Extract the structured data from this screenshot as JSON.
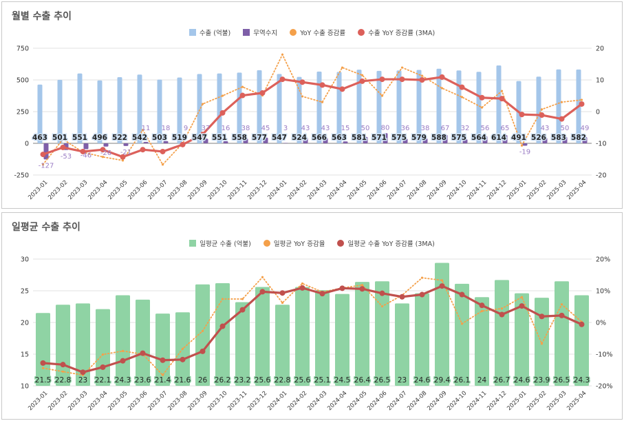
{
  "chart_data": [
    {
      "type": "bar",
      "title": "월별 수출 추이",
      "categories": [
        "2023-01",
        "2023-02",
        "2023-03",
        "2023-04",
        "2023-05",
        "2023-06",
        "2023-07",
        "2023-08",
        "2023-09",
        "2023-10",
        "2023-11",
        "2023-12",
        "2024-01",
        "2024-02",
        "2024-03",
        "2024-04",
        "2024-05",
        "2024-06",
        "2024-07",
        "2024-08",
        "2024-09",
        "2024-10",
        "2024-11",
        "2024-12",
        "2025-01",
        "2025-02",
        "2025-03",
        "2025-04"
      ],
      "left_axis": {
        "range": [
          -250,
          750
        ],
        "ticks": [
          "-250",
          "0",
          "250",
          "500",
          "750"
        ]
      },
      "right_axis": {
        "range": [
          -20,
          20
        ],
        "ticks": [
          "-20",
          "-10",
          "0",
          "10",
          "20"
        ]
      },
      "grid": true,
      "legend_position": "top",
      "series": [
        {
          "name": "수출 (억불)",
          "type": "bar",
          "axis": "left",
          "color": "#a4c6ea",
          "values": [
            463,
            501,
            551,
            496,
            522,
            542,
            503,
            519,
            547,
            551,
            558,
            577,
            547,
            524,
            566,
            563,
            581,
            571,
            575,
            579,
            588,
            575,
            564,
            614,
            491,
            526,
            583,
            582
          ]
        },
        {
          "name": "무역수지",
          "type": "bar",
          "axis": "left",
          "color": "#7e5fa8",
          "values": [
            -127,
            -53,
            -46,
            -26,
            -21,
            11,
            18,
            9,
            37,
            16,
            38,
            45,
            3,
            43,
            43,
            15,
            50,
            80,
            36,
            38,
            67,
            32,
            56,
            65,
            -19,
            43,
            50,
            49
          ]
        },
        {
          "name": "YoY 수출 증감률",
          "type": "line-dotted",
          "axis": "right",
          "color": "#f4a04a",
          "values": [
            -16.7,
            -8.7,
            -12.8,
            -14.3,
            -15.4,
            -5.8,
            -16.7,
            -10,
            2.4,
            5,
            7.8,
            5.1,
            18,
            4.8,
            3,
            13.9,
            11.5,
            5,
            13.9,
            11.3,
            7.4,
            4.6,
            1.3,
            6.5,
            -10.7,
            0.7,
            3,
            3.7
          ]
        },
        {
          "name": "수출 YoY 증감률 (3MA)",
          "type": "line",
          "axis": "right",
          "color": "#dc605a",
          "values": [
            -13.5,
            -11.3,
            -12.6,
            -12,
            -14.3,
            -12,
            -12.6,
            -10.4,
            -7.2,
            -0.4,
            5.1,
            5.9,
            10.2,
            9.3,
            8.4,
            7.1,
            9.6,
            10.2,
            10.2,
            10,
            10.9,
            7.7,
            4.4,
            4.1,
            -0.9,
            -1.1,
            -2.3,
            2.4
          ]
        }
      ]
    },
    {
      "type": "bar",
      "title": "일평균 수출 추이",
      "categories": [
        "2023-01",
        "2023-02",
        "2023-03",
        "2023-04",
        "2023-05",
        "2023-06",
        "2023-07",
        "2023-08",
        "2023-09",
        "2023-10",
        "2023-11",
        "2023-12",
        "2024-01",
        "2024-02",
        "2024-03",
        "2024-04",
        "2024-05",
        "2024-06",
        "2024-07",
        "2024-08",
        "2024-09",
        "2024-10",
        "2024-11",
        "2024-12",
        "2025-01",
        "2025-02",
        "2025-03",
        "2025-04"
      ],
      "left_axis": {
        "range": [
          10,
          30
        ],
        "ticks": [
          "10",
          "15",
          "20",
          "25",
          "30"
        ]
      },
      "right_axis": {
        "range": [
          -20,
          20
        ],
        "ticks": [
          "-20%",
          "-10%",
          "0%",
          "10%",
          "20%"
        ]
      },
      "grid": true,
      "legend_position": "top",
      "series": [
        {
          "name": "일평균 수출 (억불)",
          "type": "bar",
          "axis": "left",
          "color": "#8fd3a4",
          "values": [
            21.5,
            22.8,
            23,
            22.1,
            24.3,
            23.6,
            21.4,
            21.6,
            26,
            26.2,
            23.2,
            25.6,
            22.8,
            25.6,
            25.1,
            24.5,
            26.4,
            26.5,
            23,
            24.6,
            29.4,
            26.1,
            24,
            26.7,
            24.6,
            23.9,
            26.5,
            24.3
          ]
        },
        {
          "name": "일평균 YoY 증감율",
          "type": "line-dotted",
          "axis": "right",
          "color": "#f4a04a",
          "values": [
            -14.4,
            -15.5,
            -16.6,
            -10.1,
            -9,
            -10,
            -16.6,
            -8.3,
            -2.7,
            7.4,
            7.4,
            14.3,
            6.2,
            12.3,
            9.6,
            10.9,
            11.8,
            5.1,
            8.6,
            14.1,
            13.3,
            -0.4,
            3.6,
            4.4,
            8,
            -6.7,
            5.7,
            0.2
          ]
        },
        {
          "name": "일평균 수출 YoY 증감률 (3MA)",
          "type": "line",
          "axis": "right",
          "color": "#c0504d",
          "values": [
            -12.8,
            -13.3,
            -15.7,
            -14.1,
            -12.1,
            -9.7,
            -11.9,
            -11.7,
            -9.1,
            -1.2,
            4,
            9.7,
            9.3,
            10.9,
            9.1,
            10.8,
            10.6,
            9.2,
            8.1,
            8.8,
            11.5,
            8.8,
            5.4,
            2.5,
            5.2,
            1.9,
            2.2,
            -0.6
          ]
        }
      ]
    }
  ]
}
